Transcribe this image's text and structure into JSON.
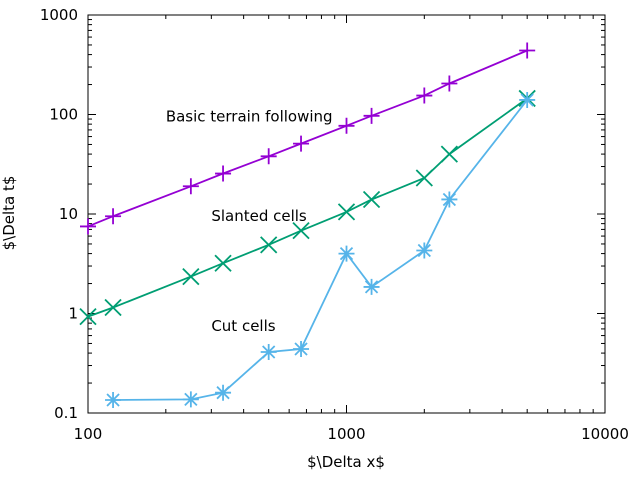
{
  "chart_data": {
    "type": "line",
    "xscale": "log",
    "yscale": "log",
    "xlabel": "$\\Delta x$",
    "ylabel": "$\\Delta t$",
    "xlim": [
      100,
      10000
    ],
    "ylim": [
      0.1,
      1000
    ],
    "xticks": [
      {
        "value": 100,
        "label": "100"
      },
      {
        "value": 1000,
        "label": "1000"
      },
      {
        "value": 10000,
        "label": "10000"
      }
    ],
    "yticks": [
      {
        "value": 0.1,
        "label": "0.1"
      },
      {
        "value": 1,
        "label": "1"
      },
      {
        "value": 10,
        "label": "10"
      },
      {
        "value": 100,
        "label": "100"
      },
      {
        "value": 1000,
        "label": "1000"
      }
    ],
    "grid": false,
    "legend": "none",
    "series": [
      {
        "name": "Basic terrain following",
        "color": "#9400d3",
        "marker": "plus",
        "label_at": [
          200,
          95
        ],
        "x": [
          100,
          125,
          250,
          333,
          500,
          667,
          1000,
          1250,
          2000,
          2500,
          5000
        ],
        "y": [
          7.5,
          9.5,
          19,
          25.5,
          38,
          51,
          77,
          97,
          155,
          205,
          440
        ]
      },
      {
        "name": "Slanted cells",
        "color": "#009e73",
        "marker": "x",
        "label_at": [
          300,
          9.5
        ],
        "x": [
          100,
          125,
          250,
          333,
          500,
          667,
          1000,
          1250,
          2000,
          2500,
          5000
        ],
        "y": [
          0.93,
          1.15,
          2.35,
          3.2,
          4.9,
          6.8,
          10.5,
          14,
          23,
          40,
          145
        ]
      },
      {
        "name": "Cut cells",
        "color": "#56b4e9",
        "marker": "star",
        "label_at": [
          300,
          0.75
        ],
        "x": [
          125,
          250,
          333,
          500,
          667,
          1000,
          1250,
          2000,
          2500,
          5000
        ],
        "y": [
          0.135,
          0.137,
          0.16,
          0.41,
          0.44,
          4.0,
          1.85,
          4.3,
          14,
          140
        ]
      }
    ]
  }
}
